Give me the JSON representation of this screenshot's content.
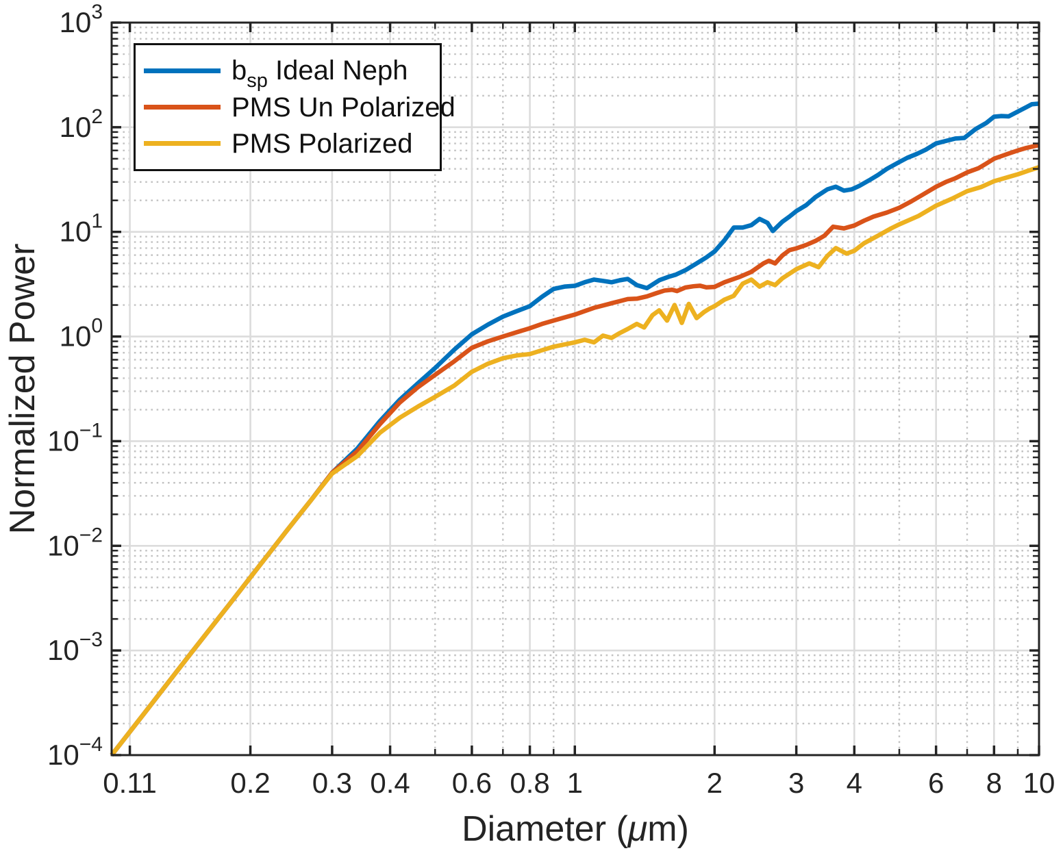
{
  "figure": {
    "title": "",
    "xlabel_pre": "Diameter (",
    "xlabel_mu": "μ",
    "xlabel_post": "m)",
    "ylabel": "Normalized Power",
    "background": "#ffffff",
    "axis_color": "#242424",
    "major_grid_color": "#dcdcdc",
    "minor_grid_color": "#c2c2c2"
  },
  "legend": {
    "items": [
      {
        "pre": "b",
        "sub": "sp",
        "post": " Ideal Neph",
        "color": "#0072BD"
      },
      {
        "pre": "PMS Un Polarized",
        "sub": "",
        "post": "",
        "color": "#D95319"
      },
      {
        "pre": "PMS Polarized",
        "sub": "",
        "post": "",
        "color": "#EDB120"
      }
    ]
  },
  "chart_data": {
    "type": "line",
    "xscale": "log",
    "yscale": "log",
    "xlabel": "Diameter (um)",
    "ylabel": "Normalized Power",
    "xlim": [
      0.1005,
      10
    ],
    "ylim": [
      0.0001,
      1000
    ],
    "grid": true,
    "minor_grid": true,
    "legend_position": "top-left",
    "xticks": [
      {
        "v": 0.11,
        "label": "0.11"
      },
      {
        "v": 0.2,
        "label": "0.2"
      },
      {
        "v": 0.3,
        "label": "0.3"
      },
      {
        "v": 0.4,
        "label": "0.4"
      },
      {
        "v": 0.6,
        "label": "0.6"
      },
      {
        "v": 0.8,
        "label": "0.8"
      },
      {
        "v": 1,
        "label": "1"
      },
      {
        "v": 2,
        "label": "2"
      },
      {
        "v": 3,
        "label": "3"
      },
      {
        "v": 4,
        "label": "4"
      },
      {
        "v": 6,
        "label": "6"
      },
      {
        "v": 8,
        "label": "8"
      },
      {
        "v": 10,
        "label": "10"
      }
    ],
    "xminor": [
      0.5,
      0.7,
      0.9,
      5,
      7,
      9
    ],
    "ytick_exponents": [
      3,
      2,
      1,
      0,
      -1,
      -2,
      -3,
      -4
    ],
    "yminor_subs": [
      2,
      3,
      4,
      5,
      6,
      7,
      8,
      9
    ],
    "series": [
      {
        "name": "b_sp Ideal Neph",
        "color": "#0072BD",
        "points": [
          [
            0.1005,
            0.0001
          ],
          [
            0.12,
            0.000274
          ],
          [
            0.15,
            0.00098
          ],
          [
            0.18,
            0.00274
          ],
          [
            0.21,
            0.0066
          ],
          [
            0.24,
            0.0141
          ],
          [
            0.27,
            0.0272
          ],
          [
            0.3,
            0.05
          ],
          [
            0.34,
            0.085
          ],
          [
            0.38,
            0.155
          ],
          [
            0.42,
            0.25
          ],
          [
            0.46,
            0.36
          ],
          [
            0.5,
            0.5
          ],
          [
            0.55,
            0.75
          ],
          [
            0.6,
            1.05
          ],
          [
            0.65,
            1.3
          ],
          [
            0.7,
            1.55
          ],
          [
            0.75,
            1.75
          ],
          [
            0.8,
            1.95
          ],
          [
            0.85,
            2.4
          ],
          [
            0.9,
            2.85
          ],
          [
            0.95,
            3.0
          ],
          [
            1.0,
            3.05
          ],
          [
            1.05,
            3.3
          ],
          [
            1.1,
            3.5
          ],
          [
            1.15,
            3.4
          ],
          [
            1.2,
            3.3
          ],
          [
            1.25,
            3.45
          ],
          [
            1.3,
            3.55
          ],
          [
            1.36,
            3.1
          ],
          [
            1.43,
            2.9
          ],
          [
            1.52,
            3.45
          ],
          [
            1.6,
            3.75
          ],
          [
            1.65,
            3.9
          ],
          [
            1.73,
            4.3
          ],
          [
            1.83,
            5.0
          ],
          [
            1.92,
            5.7
          ],
          [
            2.0,
            6.5
          ],
          [
            2.1,
            8.3
          ],
          [
            2.2,
            11.0
          ],
          [
            2.3,
            11.0
          ],
          [
            2.4,
            11.6
          ],
          [
            2.5,
            13.3
          ],
          [
            2.6,
            12.2
          ],
          [
            2.67,
            10.2
          ],
          [
            2.8,
            12.5
          ],
          [
            2.9,
            14.0
          ],
          [
            3.0,
            15.8
          ],
          [
            3.15,
            18.0
          ],
          [
            3.3,
            21.5
          ],
          [
            3.5,
            25.5
          ],
          [
            3.65,
            27.0
          ],
          [
            3.8,
            24.8
          ],
          [
            3.95,
            25.5
          ],
          [
            4.1,
            27.5
          ],
          [
            4.3,
            31.0
          ],
          [
            4.5,
            35.0
          ],
          [
            4.7,
            40.0
          ],
          [
            5.0,
            46.5
          ],
          [
            5.2,
            51.0
          ],
          [
            5.45,
            55.5
          ],
          [
            5.7,
            61.0
          ],
          [
            6.0,
            70.0
          ],
          [
            6.3,
            74.0
          ],
          [
            6.6,
            78.0
          ],
          [
            6.9,
            79.0
          ],
          [
            7.3,
            96.0
          ],
          [
            7.7,
            110
          ],
          [
            8.0,
            126
          ],
          [
            8.3,
            128
          ],
          [
            8.6,
            127
          ],
          [
            9.0,
            141
          ],
          [
            9.4,
            156
          ],
          [
            9.65,
            166
          ],
          [
            10.0,
            168
          ]
        ]
      },
      {
        "name": "PMS Un Polarized",
        "color": "#D95319",
        "points": [
          [
            0.1005,
            0.0001
          ],
          [
            0.12,
            0.000274
          ],
          [
            0.15,
            0.00098
          ],
          [
            0.18,
            0.00274
          ],
          [
            0.21,
            0.0066
          ],
          [
            0.24,
            0.0141
          ],
          [
            0.27,
            0.0272
          ],
          [
            0.3,
            0.05
          ],
          [
            0.34,
            0.08
          ],
          [
            0.38,
            0.145
          ],
          [
            0.42,
            0.235
          ],
          [
            0.46,
            0.33
          ],
          [
            0.5,
            0.43
          ],
          [
            0.55,
            0.58
          ],
          [
            0.6,
            0.78
          ],
          [
            0.65,
            0.9
          ],
          [
            0.7,
            1.0
          ],
          [
            0.75,
            1.1
          ],
          [
            0.8,
            1.2
          ],
          [
            0.85,
            1.32
          ],
          [
            0.9,
            1.42
          ],
          [
            0.95,
            1.52
          ],
          [
            1.0,
            1.62
          ],
          [
            1.05,
            1.75
          ],
          [
            1.1,
            1.88
          ],
          [
            1.15,
            1.98
          ],
          [
            1.2,
            2.08
          ],
          [
            1.25,
            2.18
          ],
          [
            1.3,
            2.28
          ],
          [
            1.36,
            2.3
          ],
          [
            1.43,
            2.42
          ],
          [
            1.5,
            2.6
          ],
          [
            1.56,
            2.75
          ],
          [
            1.62,
            2.8
          ],
          [
            1.66,
            2.72
          ],
          [
            1.73,
            2.94
          ],
          [
            1.8,
            3.02
          ],
          [
            1.86,
            3.06
          ],
          [
            1.92,
            2.95
          ],
          [
            2.0,
            2.98
          ],
          [
            2.1,
            3.3
          ],
          [
            2.26,
            3.7
          ],
          [
            2.4,
            4.15
          ],
          [
            2.55,
            5.0
          ],
          [
            2.62,
            5.3
          ],
          [
            2.7,
            5.0
          ],
          [
            2.8,
            5.95
          ],
          [
            2.9,
            6.7
          ],
          [
            3.0,
            6.95
          ],
          [
            3.15,
            7.5
          ],
          [
            3.3,
            8.2
          ],
          [
            3.45,
            9.2
          ],
          [
            3.6,
            11.2
          ],
          [
            3.8,
            10.8
          ],
          [
            4.0,
            11.5
          ],
          [
            4.2,
            12.8
          ],
          [
            4.4,
            14.0
          ],
          [
            4.7,
            15.3
          ],
          [
            5.0,
            17.0
          ],
          [
            5.3,
            19.5
          ],
          [
            5.6,
            22.5
          ],
          [
            6.0,
            27.0
          ],
          [
            6.3,
            30.0
          ],
          [
            6.6,
            32.5
          ],
          [
            7.0,
            37.0
          ],
          [
            7.4,
            40.5
          ],
          [
            7.7,
            45.0
          ],
          [
            8.0,
            50.0
          ],
          [
            8.3,
            53.0
          ],
          [
            8.6,
            56.0
          ],
          [
            9.0,
            60.0
          ],
          [
            9.4,
            63.5
          ],
          [
            9.7,
            65.5
          ],
          [
            10.0,
            67.5
          ]
        ]
      },
      {
        "name": "PMS Polarized",
        "color": "#EDB120",
        "points": [
          [
            0.1005,
            0.0001
          ],
          [
            0.12,
            0.000274
          ],
          [
            0.15,
            0.00098
          ],
          [
            0.18,
            0.00274
          ],
          [
            0.21,
            0.0066
          ],
          [
            0.24,
            0.0141
          ],
          [
            0.27,
            0.0272
          ],
          [
            0.3,
            0.049
          ],
          [
            0.34,
            0.072
          ],
          [
            0.38,
            0.12
          ],
          [
            0.42,
            0.168
          ],
          [
            0.46,
            0.215
          ],
          [
            0.5,
            0.265
          ],
          [
            0.55,
            0.34
          ],
          [
            0.6,
            0.46
          ],
          [
            0.65,
            0.55
          ],
          [
            0.7,
            0.62
          ],
          [
            0.75,
            0.66
          ],
          [
            0.8,
            0.68
          ],
          [
            0.85,
            0.74
          ],
          [
            0.9,
            0.8
          ],
          [
            0.95,
            0.84
          ],
          [
            1.0,
            0.88
          ],
          [
            1.05,
            0.93
          ],
          [
            1.1,
            0.88
          ],
          [
            1.15,
            1.02
          ],
          [
            1.2,
            0.97
          ],
          [
            1.25,
            1.08
          ],
          [
            1.3,
            1.18
          ],
          [
            1.36,
            1.32
          ],
          [
            1.41,
            1.22
          ],
          [
            1.47,
            1.6
          ],
          [
            1.52,
            1.78
          ],
          [
            1.58,
            1.42
          ],
          [
            1.64,
            2.0
          ],
          [
            1.7,
            1.35
          ],
          [
            1.76,
            2.05
          ],
          [
            1.83,
            1.5
          ],
          [
            1.9,
            1.72
          ],
          [
            1.95,
            1.85
          ],
          [
            2.0,
            1.95
          ],
          [
            2.1,
            2.25
          ],
          [
            2.2,
            2.45
          ],
          [
            2.3,
            3.2
          ],
          [
            2.4,
            3.5
          ],
          [
            2.5,
            3.0
          ],
          [
            2.6,
            3.3
          ],
          [
            2.7,
            3.1
          ],
          [
            2.8,
            3.6
          ],
          [
            3.0,
            4.4
          ],
          [
            3.2,
            5.0
          ],
          [
            3.35,
            4.6
          ],
          [
            3.5,
            5.9
          ],
          [
            3.65,
            7.0
          ],
          [
            3.85,
            6.2
          ],
          [
            4.0,
            6.6
          ],
          [
            4.2,
            7.8
          ],
          [
            4.5,
            9.2
          ],
          [
            4.8,
            10.8
          ],
          [
            5.0,
            11.8
          ],
          [
            5.5,
            14.2
          ],
          [
            6.0,
            17.8
          ],
          [
            6.5,
            20.8
          ],
          [
            7.0,
            24.5
          ],
          [
            7.5,
            26.8
          ],
          [
            8.0,
            30.5
          ],
          [
            8.5,
            33.0
          ],
          [
            9.0,
            35.5
          ],
          [
            9.5,
            38.5
          ],
          [
            10.0,
            41.5
          ]
        ]
      }
    ]
  }
}
